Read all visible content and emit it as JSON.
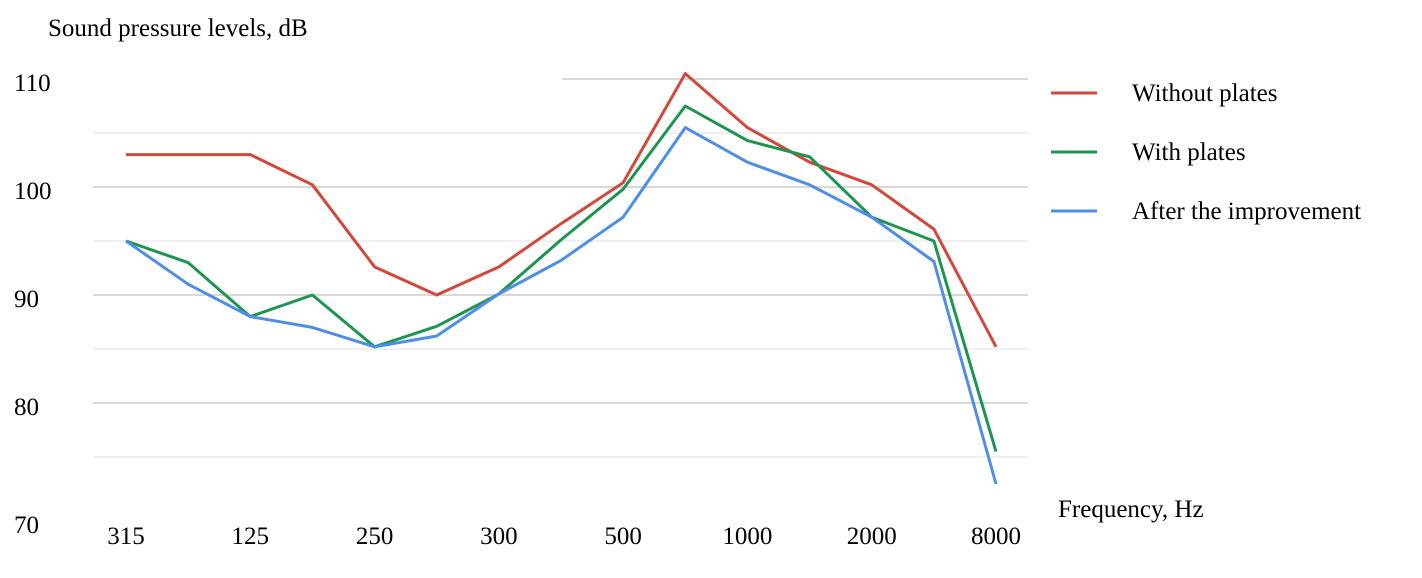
{
  "chart_data": {
    "type": "line",
    "ylabel": "Sound pressure levels, dB",
    "xlabel": "Frequency, Hz",
    "ylim": [
      70,
      110
    ],
    "yticks": [
      110,
      100,
      90,
      80,
      70
    ],
    "x_tick_labels": [
      "315",
      "125",
      "250",
      "300",
      "500",
      "1000",
      "2000",
      "8000"
    ],
    "grid": true,
    "legend_position": "right",
    "series": [
      {
        "name": "Without plates",
        "color": "#d1483c",
        "values": [
          103,
          103,
          103,
          100.2,
          92.6,
          90,
          92.6,
          96.6,
          100.4,
          110.5,
          105.5,
          102.3,
          100.2,
          96.1,
          85.2
        ]
      },
      {
        "name": "With plates",
        "color": "#1e9451",
        "values": [
          95,
          93,
          88,
          90,
          85.2,
          87.1,
          90.1,
          95.1,
          99.8,
          107.5,
          104.3,
          102.8,
          97.2,
          95,
          75.5
        ]
      },
      {
        "name": "After the improvement",
        "color": "#4f8ee6",
        "values": [
          95,
          91,
          88,
          87,
          85.2,
          86.2,
          90.1,
          93.2,
          97.2,
          105.5,
          102.3,
          100.2,
          97.2,
          93.1,
          72.5
        ]
      }
    ]
  }
}
